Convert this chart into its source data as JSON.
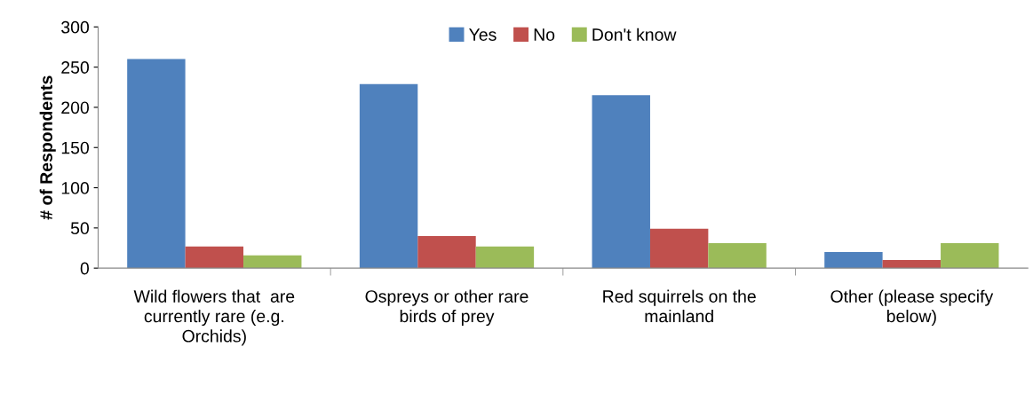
{
  "chart_data": {
    "type": "bar",
    "ylabel": "# of Respondents",
    "categories": [
      "Wild flowers that  are currently rare (e.g. Orchids)",
      "Ospreys or other rare birds of prey",
      "Red squirrels on the mainland",
      "Other (please specify below)"
    ],
    "series": [
      {
        "name": "Yes",
        "color": "#4f81bd",
        "values": [
          260,
          229,
          215,
          20
        ]
      },
      {
        "name": "No",
        "color": "#c0504d",
        "values": [
          27,
          40,
          49,
          10
        ]
      },
      {
        "name": "Don't know",
        "color": "#9bbb59",
        "values": [
          16,
          27,
          31,
          31
        ]
      }
    ],
    "ylim": [
      0,
      300
    ],
    "yticks": [
      0,
      50,
      100,
      150,
      200,
      250,
      300
    ],
    "grid": false,
    "legend": "top"
  }
}
